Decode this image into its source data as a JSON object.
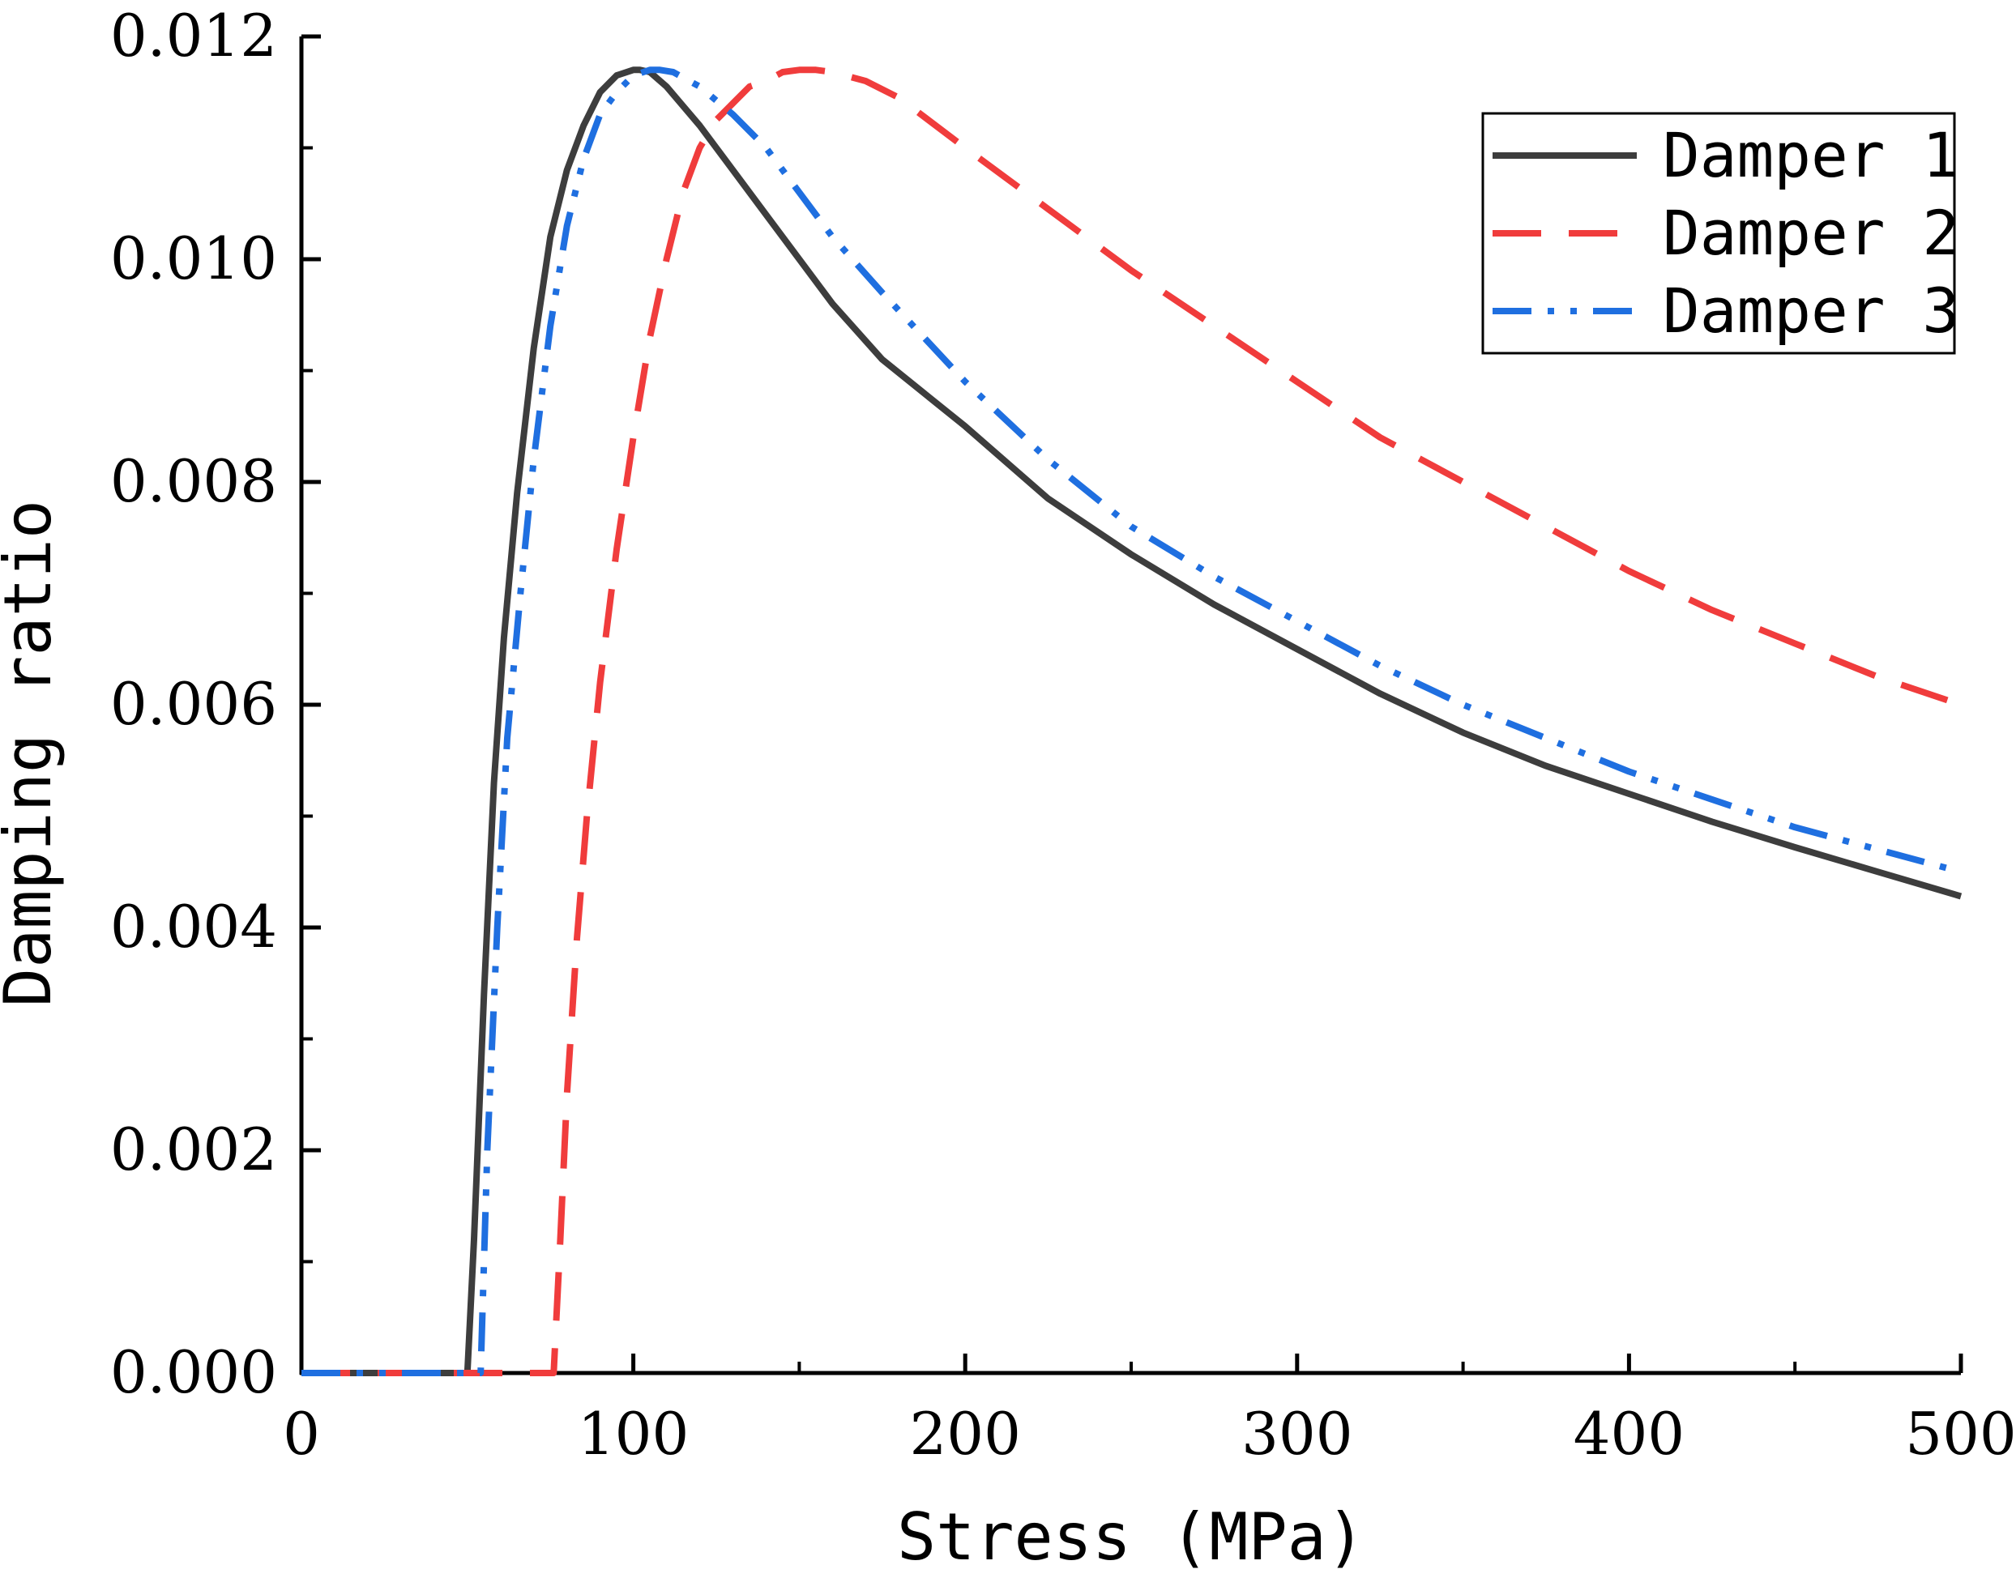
{
  "chart_data": {
    "type": "line",
    "title": "",
    "xlabel": "Stress (MPa)",
    "ylabel": "Damping ratio",
    "xlim": [
      0,
      500
    ],
    "ylim": [
      0,
      0.012
    ],
    "x_ticks": [
      "0",
      "100",
      "200",
      "300",
      "400",
      "500"
    ],
    "y_ticks": [
      "0.000",
      "0.002",
      "0.004",
      "0.006",
      "0.008",
      "0.010",
      "0.012"
    ],
    "grid": false,
    "legend_position": "top-right",
    "series": [
      {
        "name": "Damper 1",
        "color": "#3d3d3d",
        "style": "solid",
        "x": [
          0,
          10,
          20,
          30,
          40,
          50,
          52,
          55,
          58,
          61,
          65,
          70,
          75,
          80,
          85,
          90,
          95,
          100,
          102,
          105,
          110,
          120,
          130,
          140,
          150,
          160,
          175,
          200,
          225,
          250,
          275,
          300,
          325,
          350,
          375,
          400,
          425,
          450,
          475,
          500
        ],
        "y": [
          0,
          0,
          0,
          0,
          0,
          0,
          0.0012,
          0.0034,
          0.0053,
          0.0066,
          0.0079,
          0.0092,
          0.0102,
          0.0108,
          0.0112,
          0.0115,
          0.01165,
          0.0117,
          0.0117,
          0.01168,
          0.01155,
          0.0112,
          0.0108,
          0.0104,
          0.01,
          0.0096,
          0.0091,
          0.0085,
          0.00785,
          0.00735,
          0.0069,
          0.0065,
          0.0061,
          0.00575,
          0.00545,
          0.0052,
          0.00495,
          0.00472,
          0.0045,
          0.00428
        ]
      },
      {
        "name": "Damper 2",
        "color": "#f03c3c",
        "style": "dash",
        "x": [
          0,
          25,
          50,
          75,
          76,
          78,
          80,
          83,
          86,
          90,
          95,
          100,
          105,
          110,
          115,
          120,
          125,
          130,
          135,
          140,
          145,
          150,
          155,
          160,
          170,
          180,
          200,
          225,
          250,
          275,
          300,
          325,
          350,
          375,
          400,
          425,
          450,
          475,
          500
        ],
        "y": [
          0,
          0,
          0,
          0,
          0,
          0.0012,
          0.0025,
          0.0039,
          0.005,
          0.0062,
          0.0074,
          0.0084,
          0.0093,
          0.01,
          0.0106,
          0.011,
          0.01125,
          0.0114,
          0.01155,
          0.0116,
          0.01168,
          0.0117,
          0.0117,
          0.01168,
          0.0116,
          0.01145,
          0.011,
          0.01045,
          0.0099,
          0.0094,
          0.0089,
          0.0084,
          0.008,
          0.0076,
          0.0072,
          0.00685,
          0.00655,
          0.00625,
          0.006
        ]
      },
      {
        "name": "Damper 3",
        "color": "#1f6fe0",
        "style": "dashdotdot",
        "x": [
          0,
          10,
          20,
          30,
          40,
          50,
          54,
          56,
          59,
          62,
          66,
          70,
          75,
          80,
          85,
          90,
          95,
          100,
          105,
          108,
          112,
          120,
          130,
          140,
          150,
          160,
          175,
          200,
          225,
          250,
          275,
          300,
          325,
          350,
          375,
          400,
          425,
          450,
          475,
          500
        ],
        "y": [
          0,
          0,
          0,
          0,
          0,
          0,
          0,
          0.002,
          0.004,
          0.0057,
          0.007,
          0.0082,
          0.0094,
          0.0103,
          0.0109,
          0.0113,
          0.0115,
          0.01165,
          0.0117,
          0.0117,
          0.01168,
          0.01155,
          0.0113,
          0.011,
          0.0106,
          0.0102,
          0.0097,
          0.0089,
          0.0082,
          0.0076,
          0.00715,
          0.00675,
          0.00635,
          0.006,
          0.0057,
          0.0054,
          0.00515,
          0.0049,
          0.0047,
          0.0045
        ]
      }
    ]
  }
}
